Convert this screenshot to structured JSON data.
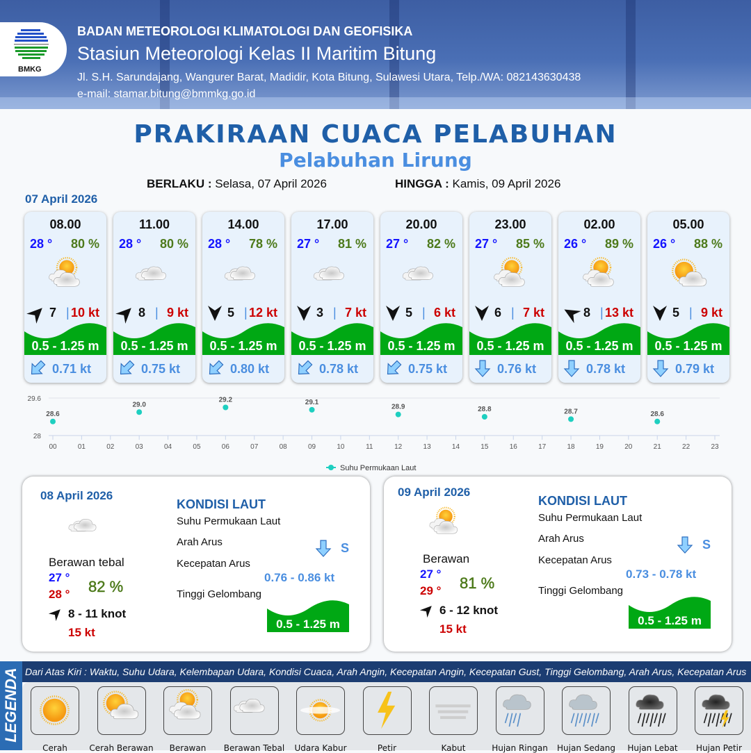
{
  "header": {
    "org": "BADAN METEOROLOGI KLIMATOLOGI DAN GEOFISIKA",
    "station": "Stasiun Meteorologi Kelas II Maritim Bitung",
    "address": "Jl. S.H. Sarundajang, Wangurer Barat, Madidir, Kota Bitung, Sulawesi Utara, Telp./WA: 082143630438",
    "email": "e-mail: stamar.bitung@bmmkg.go.id",
    "logo_text": "BMKG"
  },
  "title": "PRAKIRAAN CUACA PELABUHAN",
  "subtitle": "Pelabuhan Lirung",
  "validity": {
    "from_label": "BERLAKU :",
    "from": "Selasa, 07 April 2026",
    "to_label": "HINGGA :",
    "to": "Kamis, 09 April 2026"
  },
  "day1_date": "07 April 2026",
  "colors": {
    "temp": "#1414ff",
    "humidity": "#4d7a1b",
    "gust": "#cc0000",
    "wave": "#00a814",
    "current": "#4a8ee0",
    "title": "#1f5fa8"
  },
  "forecasts": [
    {
      "time": "08.00",
      "temp": "28 °",
      "rh": "80 %",
      "weather": "berawan",
      "wind_dir_deg": 45,
      "wind": "7",
      "gust": "10 kt",
      "wave": "0.5 - 1.25 m",
      "current_dir_deg": 225,
      "current": "0.71 kt"
    },
    {
      "time": "11.00",
      "temp": "28 °",
      "rh": "80 %",
      "weather": "berawan-tebal",
      "wind_dir_deg": 45,
      "wind": "8",
      "gust": "9 kt",
      "wave": "0.5 - 1.25 m",
      "current_dir_deg": 225,
      "current": "0.75 kt"
    },
    {
      "time": "14.00",
      "temp": "28 °",
      "rh": "78 %",
      "weather": "berawan-tebal",
      "wind_dir_deg": 180,
      "wind": "5",
      "gust": "12 kt",
      "wave": "0.5 - 1.25 m",
      "current_dir_deg": 225,
      "current": "0.80 kt"
    },
    {
      "time": "17.00",
      "temp": "27 °",
      "rh": "81 %",
      "weather": "berawan-tebal",
      "wind_dir_deg": 180,
      "wind": "3",
      "gust": "7 kt",
      "wave": "0.5 - 1.25 m",
      "current_dir_deg": 225,
      "current": "0.78 kt"
    },
    {
      "time": "20.00",
      "temp": "27 °",
      "rh": "82 %",
      "weather": "berawan-tebal",
      "wind_dir_deg": 180,
      "wind": "5",
      "gust": "6 kt",
      "wave": "0.5 - 1.25 m",
      "current_dir_deg": 225,
      "current": "0.75 kt"
    },
    {
      "time": "23.00",
      "temp": "27 °",
      "rh": "85 %",
      "weather": "berawan",
      "wind_dir_deg": 180,
      "wind": "6",
      "gust": "7 kt",
      "wave": "0.5 - 1.25 m",
      "current_dir_deg": 180,
      "current": "0.76 kt"
    },
    {
      "time": "02.00",
      "temp": "26 °",
      "rh": "89 %",
      "weather": "berawan",
      "wind_dir_deg": 300,
      "wind": "8",
      "gust": "13 kt",
      "wave": "0.5 - 1.25 m",
      "current_dir_deg": 180,
      "current": "0.78 kt"
    },
    {
      "time": "05.00",
      "temp": "26 °",
      "rh": "88 %",
      "weather": "cerah-berawan",
      "wind_dir_deg": 180,
      "wind": "5",
      "gust": "9 kt",
      "wave": "0.5 - 1.25 m",
      "current_dir_deg": 180,
      "current": "0.79 kt"
    }
  ],
  "chart_data": {
    "type": "scatter",
    "x": [
      "00",
      "03",
      "06",
      "09",
      "12",
      "15",
      "18",
      "21"
    ],
    "values": [
      28.6,
      29.0,
      29.2,
      29.1,
      28.9,
      28.8,
      28.7,
      28.6
    ],
    "labels": [
      "28.6",
      "29.0",
      "29.2",
      "29.1",
      "28.9",
      "28.8",
      "28.7",
      "28.6"
    ],
    "xticks": [
      "00",
      "01",
      "02",
      "03",
      "04",
      "05",
      "06",
      "07",
      "08",
      "09",
      "10",
      "11",
      "12",
      "13",
      "14",
      "15",
      "16",
      "17",
      "18",
      "19",
      "20",
      "21",
      "22",
      "23"
    ],
    "yticks": [
      "28",
      "29.6"
    ],
    "ylim": [
      28,
      29.6
    ],
    "series_name": "Suhu Permukaan Laut",
    "color": "#1ecfc0",
    "grid": true,
    "legend": "bottom"
  },
  "days": [
    {
      "date": "08 April 2026",
      "weather": "berawan-tebal",
      "condition": "Berawan tebal",
      "tmin": "27 °",
      "tmax": "28 °",
      "rh": "82 %",
      "wind": "8  - 11 knot",
      "gust": "15 kt",
      "wind_dir_deg": 45,
      "sea_title": "KONDISI LAUT",
      "sst_label": "Suhu Permukaan Laut",
      "cur_dir_label": "Arah Arus",
      "cur_dir": "S",
      "cur_spd_label": "Kecepatan Arus",
      "cur_spd": "0.76 - 0.86 kt",
      "wave_label": "Tinggi Gelombang",
      "wave": "0.5 - 1.25 m"
    },
    {
      "date": "09 April 2026",
      "weather": "berawan",
      "condition": "Berawan",
      "tmin": "27 °",
      "tmax": "29 °",
      "rh": "81 %",
      "wind": "6  - 12 knot",
      "gust": "15 kt",
      "wind_dir_deg": 45,
      "sea_title": "KONDISI LAUT",
      "sst_label": "Suhu Permukaan Laut",
      "cur_dir_label": "Arah Arus",
      "cur_dir": "S",
      "cur_spd_label": "Kecepatan Arus",
      "cur_spd": "0.73 - 0.78 kt",
      "wave_label": "Tinggi Gelombang",
      "wave": "0.5 - 1.25 m"
    }
  ],
  "legend": {
    "side": "LEGENDA",
    "description": "Dari Atas Kiri : Waktu, Suhu Udara, Kelembapan Udara, Kondisi Cuaca, Arah Angin, Kecepatan Angin, Kecepatan Gust, Tinggi Gelombang, Arah Arus, Kecepatan Arus",
    "items": [
      {
        "label": "Cerah",
        "icon": "cerah"
      },
      {
        "label": "Cerah Berawan",
        "icon": "cerah-berawan"
      },
      {
        "label": "Berawan",
        "icon": "berawan"
      },
      {
        "label": "Berawan Tebal",
        "icon": "berawan-tebal"
      },
      {
        "label": "Udara Kabur",
        "icon": "udara-kabur"
      },
      {
        "label": "Petir",
        "icon": "petir"
      },
      {
        "label": "Kabut",
        "icon": "kabut"
      },
      {
        "label": "Hujan Ringan",
        "icon": "hujan-ringan"
      },
      {
        "label": "Hujan Sedang",
        "icon": "hujan-sedang"
      },
      {
        "label": "Hujan Lebat",
        "icon": "hujan-lebat"
      },
      {
        "label": "Hujan Petir",
        "icon": "hujan-petir"
      }
    ]
  }
}
